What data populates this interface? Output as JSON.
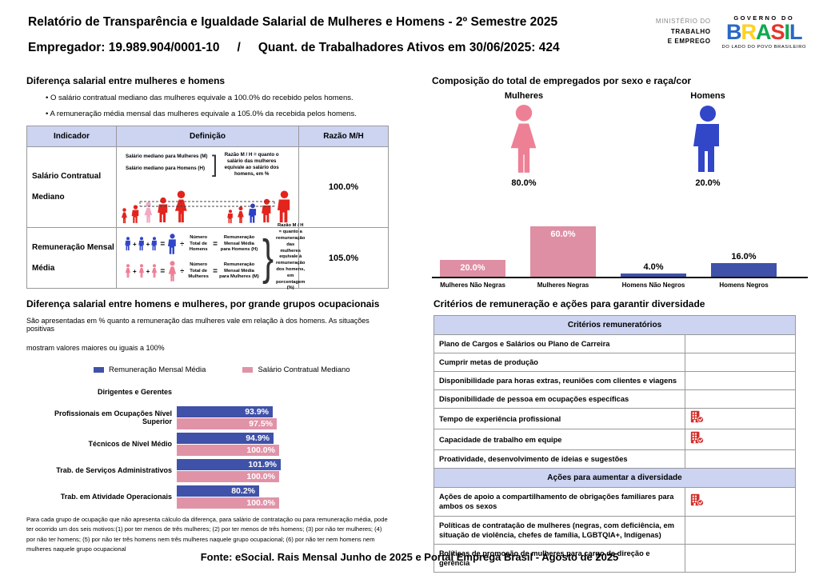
{
  "header": {
    "title": "Relatório de Transparência e Igualdade Salarial de Mulheres e Homens - 2º Semestre 2025",
    "employer": "Empregador: 19.989.904/0001-10",
    "separator": "/",
    "active_workers": "Quant. de Trabalhadores Ativos em 30/06/2025: 424",
    "ministry_lines": [
      "MINISTÉRIO DO",
      "TRABALHO",
      "E EMPREGO"
    ],
    "gov_top": "GOVERNO DO",
    "gov_name": "BRASIL",
    "gov_bottom": "DO LADO DO POVO BRASILEIRO",
    "brasil_letter_colors": [
      "#2968c8",
      "#ffd21e",
      "#0fa94e",
      "#e6352c",
      "#0fa94e",
      "#2968c8"
    ]
  },
  "salary_diff": {
    "title": "Diferença salarial entre mulheres e homens",
    "bullets": [
      "O salário contratual mediano das mulheres equivale a 100.0% do recebido pelos homens.",
      "A remuneração média mensal das mulheres equivale a 105.0% da recebida pelos homens."
    ],
    "table": {
      "headers": [
        "Indicador",
        "Definição",
        "Razão M/H"
      ],
      "rows": [
        {
          "indicator": "Salário Contratual Mediano",
          "def_line1": "Salário mediano para Mulheres (M)",
          "def_line2": "Salário mediano para Homens (H)",
          "note": "Razão M / H = quanto o salário das mulheres equivale ao salário dos homens, em %",
          "ratio": "100.0%"
        },
        {
          "indicator": "Remuneração Mensal Média",
          "men_divisor": "Número Total de Homens",
          "men_result": "Remuneração Mensal Média para Homens (H)",
          "women_divisor": "Número Total de Mulheres",
          "women_result": "Remuneração Mensal Média para Mulheres (M)",
          "note": "Razão M / H = quanto a remuneração das mulheres equivale à remuneração dos homens, em porcentagem (%)",
          "ratio": "105.0%"
        }
      ]
    }
  },
  "composition": {
    "title": "Composição do total de empregados por sexo e raça/cor",
    "women_label": "Mulheres",
    "women_pct": "80.0%",
    "men_label": "Homens",
    "men_pct": "20.0%",
    "women_color": "#ee8096",
    "men_color": "#3246c8"
  },
  "occupational": {
    "title": "Diferença salarial entre homens e mulheres, por grande grupos ocupacionais",
    "description": [
      "São apresentadas em % quanto a remuneração das mulheres vale em relação à dos homens. As situações positivas",
      "mostram valores maiores ou iguais a 100%"
    ],
    "footnote": "Para cada grupo de ocupação que não apresenta cálculo da diferença, para salário de contratação ou para remuneração média, pode ter ocorrido um dos seis motivos:(1) por ter menos de três mulheres; (2) por ter menos de três homens; (3) por não ter mulheres; (4) por não ter homens; (5) por não ter três homens nem três mulheres naquele grupo ocupacional; (6) por não ter nem homens nem mulheres naquele grupo ocupacional"
  },
  "criteria": {
    "title": "Critérios de remuneração e ações para garantir diversidade",
    "sections": [
      {
        "header": "Critérios remuneratórios",
        "rows": [
          {
            "label": "Plano de Cargos e Salários ou Plano de Carreira",
            "adopted": false
          },
          {
            "label": "Cumprir metas de produção",
            "adopted": false
          },
          {
            "label": "Disponibilidade para horas extras, reuniões com clientes e viagens",
            "adopted": false
          },
          {
            "label": "Disponibilidade de pessoa em ocupações específicas",
            "adopted": false
          },
          {
            "label": "Tempo de experiência profissional",
            "adopted": true
          },
          {
            "label": "Capacidade de trabalho em equipe",
            "adopted": true
          },
          {
            "label": "Proatividade, desenvolvimento de ideias e sugestões",
            "adopted": false
          }
        ]
      },
      {
        "header": "Ações para aumentar a diversidade",
        "rows": [
          {
            "label": "Ações de apoio a compartilhamento de obrigações familiares para ambos os sexos",
            "adopted": true
          },
          {
            "label": "Políticas de contratação de mulheres (negras, com deficiência, em situação de violência, chefes de família, LGBTQIA+, Indígenas)",
            "adopted": false
          },
          {
            "label": "Políticas de promoção de mulheres para cargo de direção e gerência",
            "adopted": false
          }
        ]
      }
    ],
    "check_icon_color": "#d2302c"
  },
  "footer": "Fonte: eSocial. Rais Mensal Junho de 2025 e Portal Emprega Brasil - Agosto de 2025",
  "chart_data": [
    {
      "type": "bar",
      "title": "Composição do total de empregados por sexo e raça/cor",
      "categories": [
        "Mulheres Não Negras",
        "Mulheres Negras",
        "Homens Não Negros",
        "Homens Negros"
      ],
      "values": [
        20.0,
        60.0,
        4.0,
        16.0
      ],
      "value_format": "percent",
      "colors": [
        "#de8fa4",
        "#de8fa4",
        "#3f51a8",
        "#3f51a8"
      ],
      "ylim": [
        0,
        60
      ],
      "grid": false,
      "sex_split": {
        "Mulheres": 80.0,
        "Homens": 20.0
      }
    },
    {
      "type": "bar",
      "orientation": "horizontal",
      "title": "Diferença salarial entre homens e mulheres, por grande grupos ocupacionais",
      "categories": [
        "Dirigentes e Gerentes",
        "Profissionais em Ocupações Nível Superior",
        "Técnicos de Nível Médio",
        "Trab. de Serviços Administrativos",
        "Trab. em Atividade Operacionais"
      ],
      "series": [
        {
          "name": "Remuneração Mensal Média",
          "color": "#3f51a8",
          "values": [
            null,
            93.9,
            94.9,
            101.9,
            80.2
          ]
        },
        {
          "name": "Salário Contratual Mediano",
          "color": "#e093a7",
          "values": [
            null,
            97.5,
            100.0,
            100.0,
            100.0
          ]
        }
      ],
      "xlim": [
        0,
        105
      ],
      "value_format": "percent",
      "grid": false,
      "legend_position": "top"
    }
  ]
}
